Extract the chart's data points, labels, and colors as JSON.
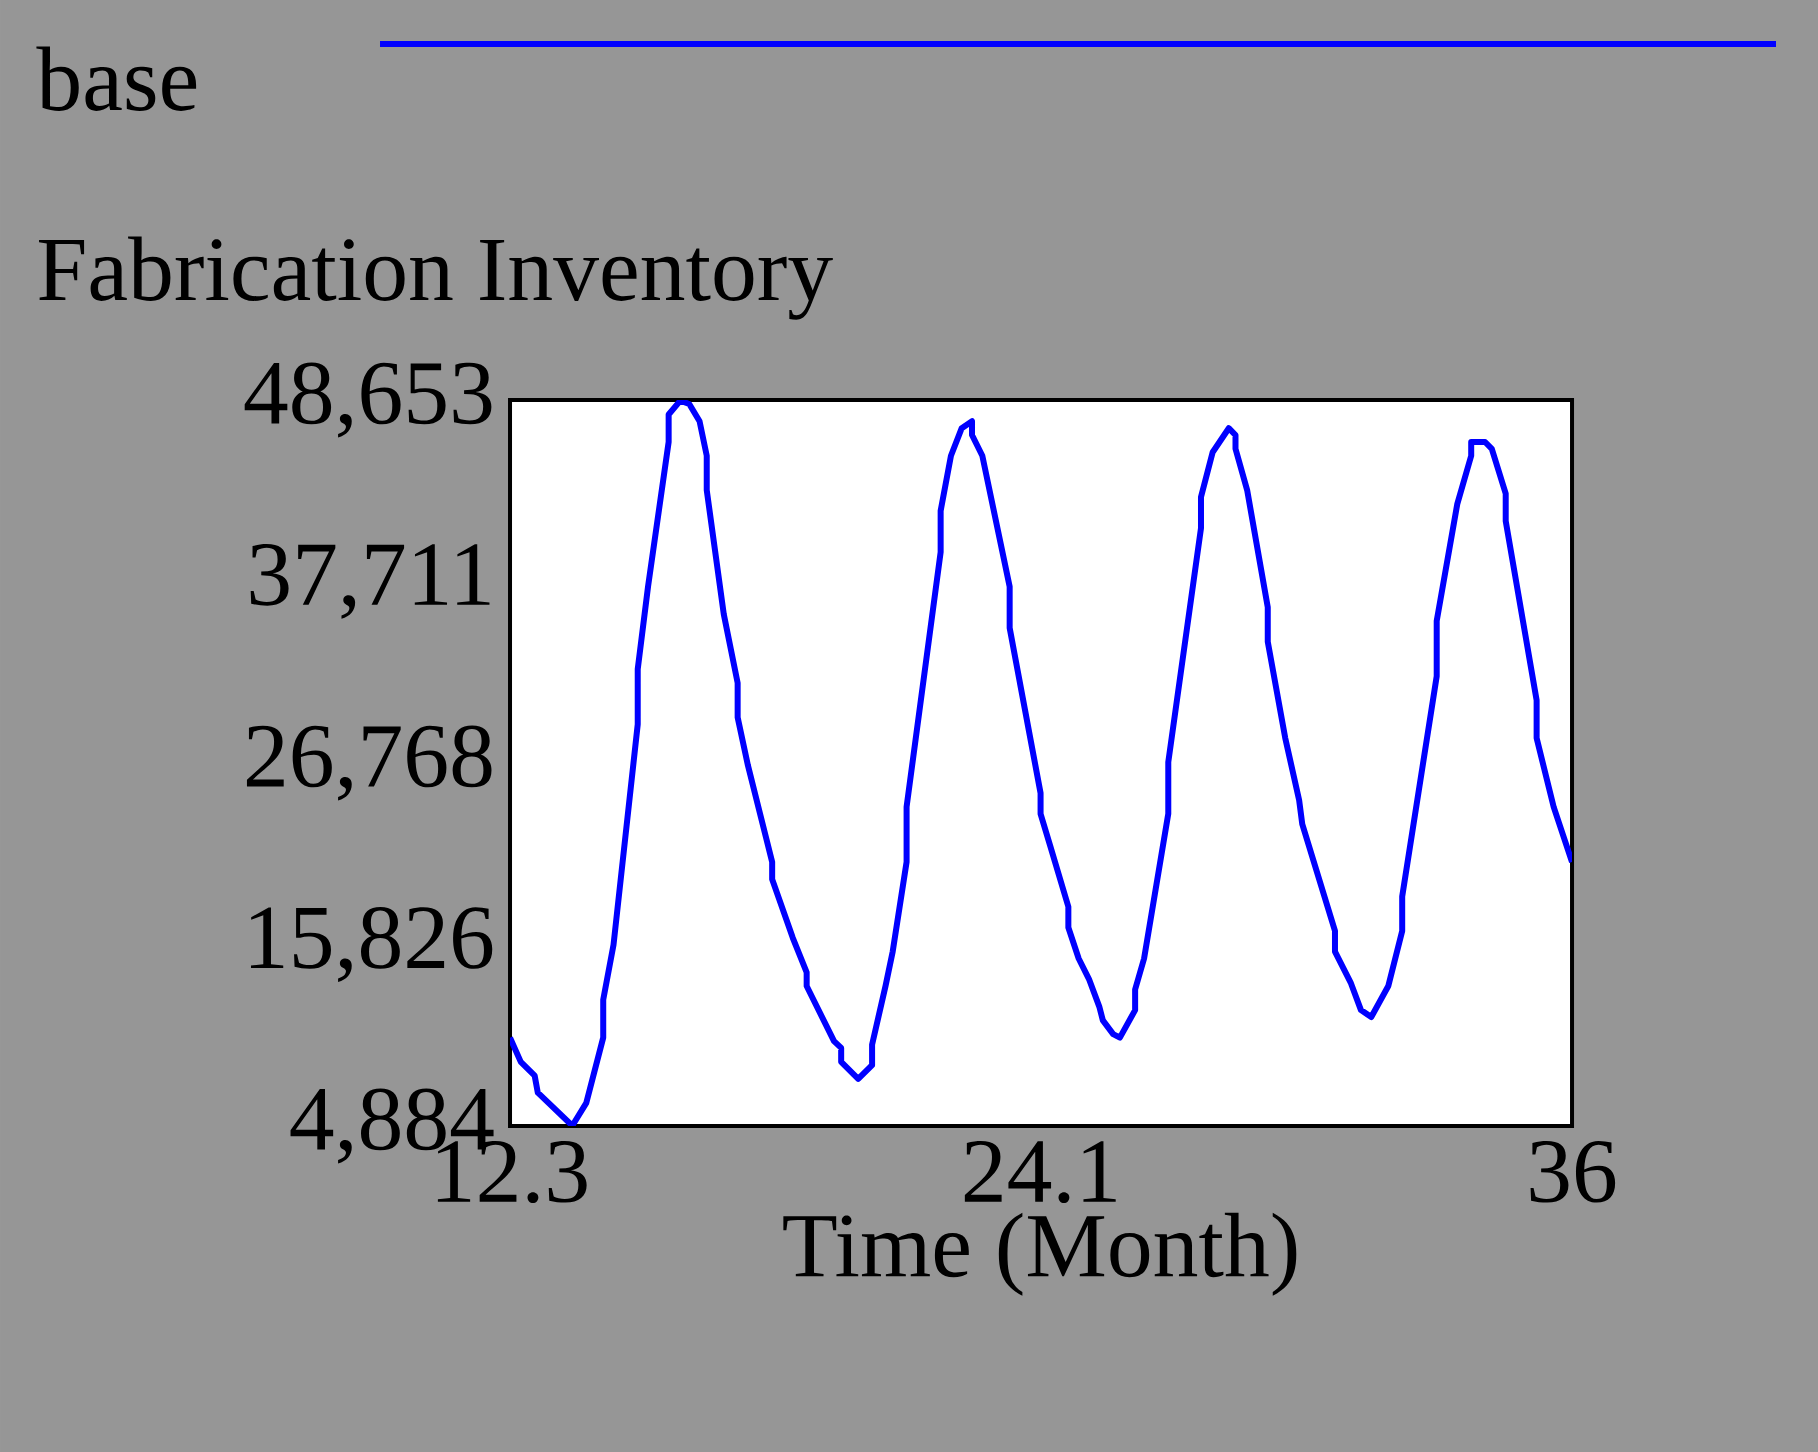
{
  "chart_data": {
    "type": "line",
    "title": "Fabrication Inventory",
    "xlabel": "Time (Month)",
    "legend": "top",
    "xlim": [
      12.3,
      36
    ],
    "ylim": [
      4884,
      48653
    ],
    "xticks": [
      12.3,
      {
        "value": 24.15,
        "label": "24.1"
      },
      36
    ],
    "yticks": [
      {
        "value": 4884,
        "label": "4,884"
      },
      {
        "value": 15826,
        "label": "15,826"
      },
      {
        "value": 26768,
        "label": "26,768"
      },
      {
        "value": 37711,
        "label": "37,711"
      },
      {
        "value": 48653,
        "label": "48,653"
      }
    ],
    "series": [
      {
        "name": "base",
        "color": "#0000ff",
        "x": [
          12.3,
          12.54,
          12.85,
          12.92,
          13.69,
          14.0,
          14.38,
          14.38,
          14.61,
          15.15,
          15.15,
          15.38,
          15.84,
          15.84,
          16.1,
          16.3,
          16.53,
          16.69,
          16.69,
          17.07,
          17.38,
          17.38,
          17.61,
          18.15,
          18.15,
          18.61,
          18.92,
          18.92,
          19.53,
          19.69,
          19.69,
          20.07,
          20.38,
          20.38,
          20.68,
          20.84,
          21.15,
          21.15,
          21.91,
          21.91,
          22.14,
          22.38,
          22.61,
          22.61,
          22.84,
          23.45,
          23.45,
          24.14,
          24.14,
          24.37,
          24.76,
          24.76,
          24.99,
          25.22,
          25.45,
          25.53,
          25.76,
          25.91,
          26.25,
          26.25,
          26.45,
          26.99,
          26.99,
          27.72,
          27.72,
          27.98,
          28.34,
          28.49,
          28.49,
          28.75,
          29.21,
          29.21,
          29.6,
          29.91,
          29.98,
          30.71,
          30.71,
          31.06,
          31.29,
          31.52,
          31.9,
          32.21,
          32.21,
          32.98,
          32.98,
          33.44,
          33.75,
          33.75,
          34.06,
          34.21,
          34.52,
          34.52,
          35.21,
          35.21,
          35.59,
          36
        ],
        "values": [
          10210,
          8750,
          7920,
          6890,
          4900,
          6260,
          10210,
          12490,
          15810,
          29100,
          32420,
          37400,
          46120,
          47780,
          48610,
          48410,
          47370,
          45290,
          43220,
          35740,
          31590,
          29510,
          26610,
          20800,
          19760,
          16230,
          14150,
          13320,
          10000,
          9590,
          8750,
          7720,
          8550,
          9790,
          13320,
          15400,
          20800,
          24120,
          39480,
          41970,
          45290,
          46950,
          47370,
          46540,
          45290,
          37400,
          34910,
          24950,
          23700,
          21630,
          18100,
          16850,
          14980,
          13740,
          12080,
          11250,
          10420,
          10210,
          11870,
          13110,
          14980,
          23700,
          26820,
          40930,
          42800,
          45500,
          46950,
          46540,
          45710,
          43220,
          36160,
          34080,
          28270,
          24530,
          23080,
          16640,
          15400,
          13530,
          11870,
          11450,
          13320,
          16640,
          18720,
          32000,
          35330,
          42390,
          45290,
          46120,
          46120,
          45710,
          43010,
          41350,
          30550,
          28270,
          24120,
          20800
        ]
      }
    ]
  }
}
